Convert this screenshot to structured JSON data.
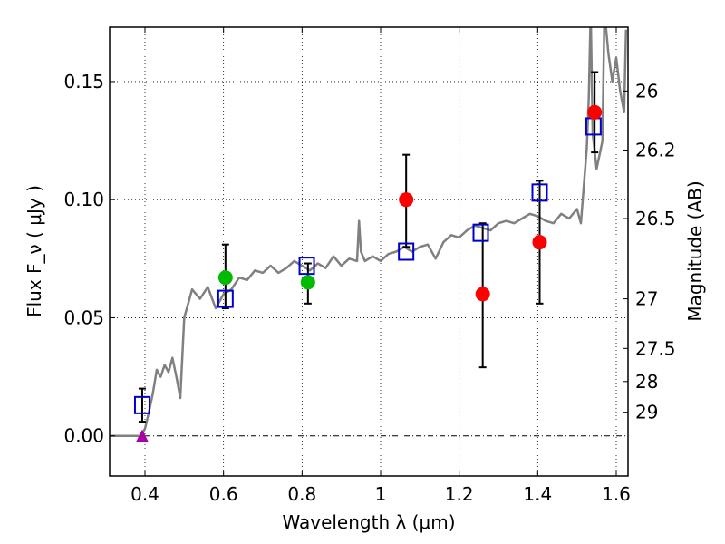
{
  "chart_data": {
    "type": "scatter",
    "title": "",
    "xlabel": "Wavelength  λ (μm)",
    "ylabel": "Flux  F_ν  ( μJy )",
    "y2label": "Magnitude (AB)",
    "xlim": [
      0.31,
      1.63
    ],
    "ylim": [
      -0.017,
      0.173
    ],
    "grid": true,
    "colors": {
      "model": "#808080",
      "red": "#ff0000",
      "green": "#00bb00",
      "blue": "#0000cc",
      "magenta": "#aa00aa",
      "errorbar": "#000000"
    },
    "x_ticks": [
      {
        "value": 0.4,
        "label": "0.4"
      },
      {
        "value": 0.6,
        "label": "0.6"
      },
      {
        "value": 0.8,
        "label": "0.8"
      },
      {
        "value": 1.0,
        "label": "1"
      },
      {
        "value": 1.2,
        "label": "1.2"
      },
      {
        "value": 1.4,
        "label": "1.4"
      },
      {
        "value": 1.6,
        "label": "1.6"
      }
    ],
    "y_ticks": [
      {
        "value": 0.0,
        "label": "0.00"
      },
      {
        "value": 0.05,
        "label": "0.05"
      },
      {
        "value": 0.1,
        "label": "0.10"
      },
      {
        "value": 0.15,
        "label": "0.15"
      }
    ],
    "y2_ticks": [
      {
        "flux": 0.146,
        "label": "26"
      },
      {
        "flux": 0.121,
        "label": "26.2"
      },
      {
        "flux": 0.092,
        "label": "26.5"
      },
      {
        "flux": 0.058,
        "label": "27"
      },
      {
        "flux": 0.037,
        "label": "27.5"
      },
      {
        "flux": 0.023,
        "label": "28"
      },
      {
        "flux": 0.01,
        "label": "29"
      }
    ],
    "model_sed": {
      "name": "model SED",
      "x": [
        0.31,
        0.39,
        0.4,
        0.41,
        0.42,
        0.43,
        0.44,
        0.45,
        0.46,
        0.47,
        0.48,
        0.49,
        0.5,
        0.51,
        0.52,
        0.54,
        0.56,
        0.58,
        0.6,
        0.62,
        0.64,
        0.66,
        0.68,
        0.7,
        0.72,
        0.74,
        0.76,
        0.78,
        0.8,
        0.82,
        0.84,
        0.86,
        0.88,
        0.9,
        0.92,
        0.94,
        0.945,
        0.95,
        0.96,
        0.98,
        1.0,
        1.02,
        1.04,
        1.06,
        1.08,
        1.1,
        1.12,
        1.14,
        1.16,
        1.18,
        1.2,
        1.22,
        1.24,
        1.26,
        1.28,
        1.3,
        1.32,
        1.34,
        1.36,
        1.38,
        1.4,
        1.42,
        1.44,
        1.46,
        1.48,
        1.5,
        1.51,
        1.52,
        1.525,
        1.53,
        1.535,
        1.54,
        1.55,
        1.56,
        1.565,
        1.57,
        1.58,
        1.59,
        1.6,
        1.61,
        1.62,
        1.625
      ],
      "y": [
        0.0,
        0.0,
        0.003,
        0.01,
        0.018,
        0.028,
        0.025,
        0.03,
        0.027,
        0.033,
        0.025,
        0.016,
        0.05,
        0.056,
        0.062,
        0.058,
        0.063,
        0.054,
        0.06,
        0.062,
        0.067,
        0.066,
        0.07,
        0.069,
        0.072,
        0.069,
        0.071,
        0.074,
        0.072,
        0.07,
        0.073,
        0.071,
        0.076,
        0.072,
        0.075,
        0.074,
        0.091,
        0.078,
        0.074,
        0.076,
        0.074,
        0.077,
        0.078,
        0.08,
        0.078,
        0.08,
        0.081,
        0.075,
        0.082,
        0.085,
        0.084,
        0.087,
        0.089,
        0.088,
        0.087,
        0.09,
        0.091,
        0.09,
        0.092,
        0.094,
        0.093,
        0.091,
        0.09,
        0.094,
        0.092,
        0.096,
        0.09,
        0.111,
        0.122,
        0.143,
        0.18,
        0.128,
        0.113,
        0.121,
        0.125,
        0.18,
        0.162,
        0.15,
        0.16,
        0.146,
        0.137,
        0.172
      ]
    },
    "series": [
      {
        "name": "red circles",
        "marker": "circle",
        "color": "red",
        "x": [
          1.065,
          1.26,
          1.405,
          1.545
        ],
        "y": [
          0.1,
          0.06,
          0.082,
          0.137
        ],
        "err_low": [
          0.02,
          0.031,
          0.026,
          0.017
        ],
        "err_high": [
          0.019,
          0.03,
          0.026,
          0.017
        ]
      },
      {
        "name": "green circles",
        "marker": "circle",
        "color": "green",
        "x": [
          0.605,
          0.815
        ],
        "y": [
          0.067,
          0.065
        ],
        "err_low": [
          0.013,
          0.009
        ],
        "err_high": [
          0.014,
          0.008
        ]
      },
      {
        "name": "blue squares",
        "marker": "square",
        "color": "blue",
        "x": [
          0.393,
          0.605,
          0.812,
          1.065,
          1.255,
          1.405,
          1.542
        ],
        "y": [
          0.013,
          0.058,
          0.072,
          0.078,
          0.086,
          0.103,
          0.131
        ],
        "err_low": [
          0.007,
          0.0,
          0.0,
          0.0,
          0.0,
          0.0,
          0.0
        ],
        "err_high": [
          0.007,
          0.0,
          0.0,
          0.0,
          0.0,
          0.0,
          0.0
        ]
      },
      {
        "name": "magenta triangle",
        "marker": "triangle",
        "color": "magenta",
        "x": [
          0.393
        ],
        "y": [
          0.0
        ]
      }
    ]
  }
}
